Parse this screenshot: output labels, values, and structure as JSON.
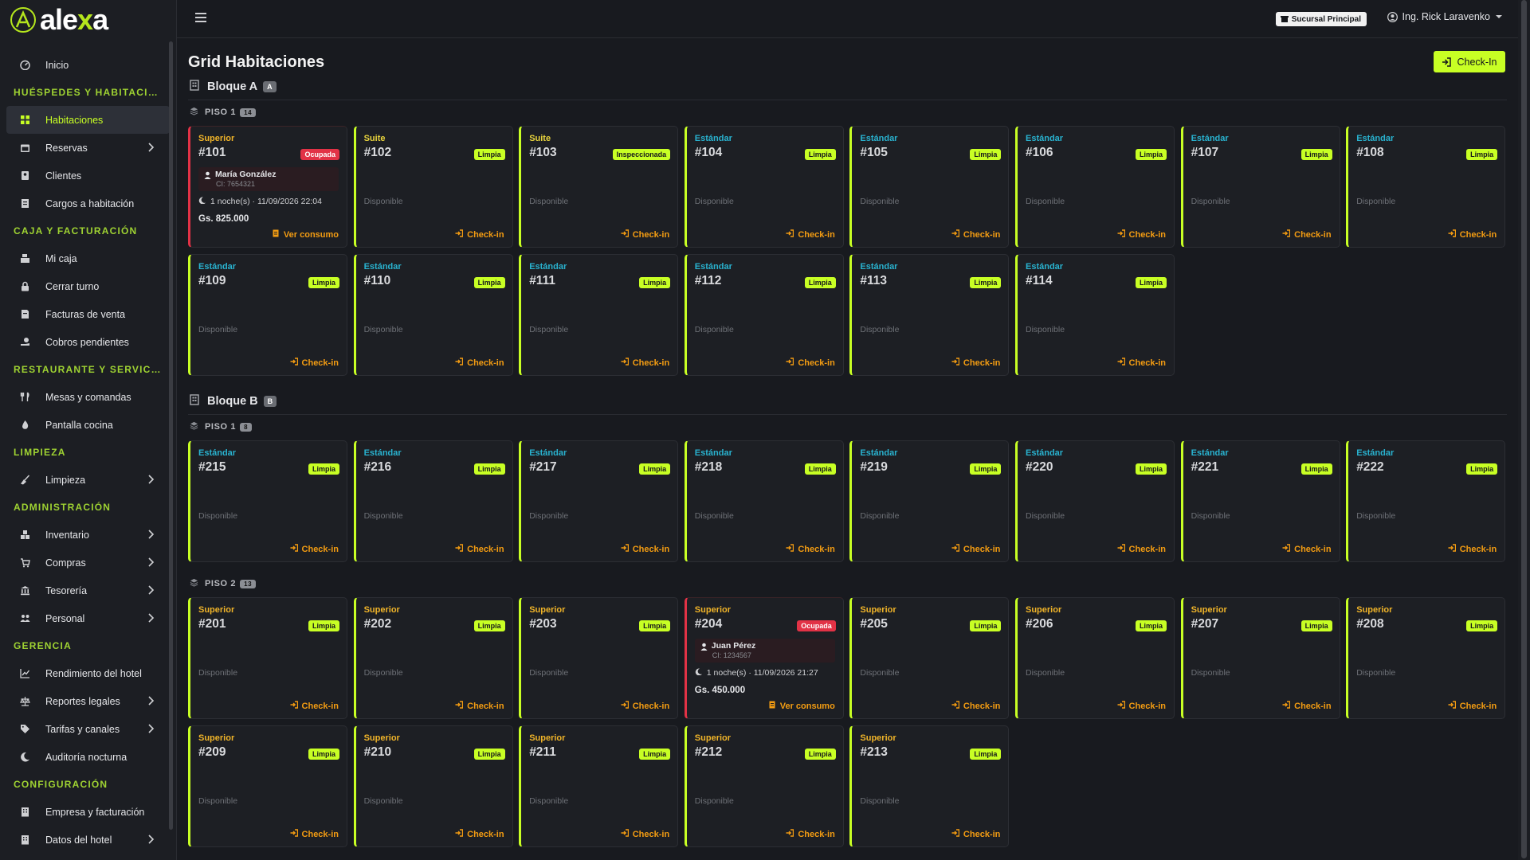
{
  "app": {
    "logo_text": "alexa"
  },
  "topbar": {
    "branch": "Sucursal Principal",
    "user": "Ing. Rick Laravenko"
  },
  "sidebar": [
    {
      "kind": "item",
      "label": "Inicio",
      "icon": "gauge-icon"
    },
    {
      "kind": "section",
      "label": "HUÉSPEDES Y HABITACIONES"
    },
    {
      "kind": "item",
      "label": "Habitaciones",
      "icon": "grid-icon",
      "active": true
    },
    {
      "kind": "item",
      "label": "Reservas",
      "icon": "calendar-icon",
      "chevron": true
    },
    {
      "kind": "item",
      "label": "Clientes",
      "icon": "contact-icon"
    },
    {
      "kind": "item",
      "label": "Cargos a habitación",
      "icon": "receipt-icon"
    },
    {
      "kind": "section",
      "label": "CAJA Y FACTURACIÓN"
    },
    {
      "kind": "item",
      "label": "Mi caja",
      "icon": "cash-register-icon"
    },
    {
      "kind": "item",
      "label": "Cerrar turno",
      "icon": "lock-icon"
    },
    {
      "kind": "item",
      "label": "Facturas de venta",
      "icon": "invoice-icon"
    },
    {
      "kind": "item",
      "label": "Cobros pendientes",
      "icon": "hand-coin-icon"
    },
    {
      "kind": "section",
      "label": "RESTAURANTE Y SERVICIOS"
    },
    {
      "kind": "item",
      "label": "Mesas y comandas",
      "icon": "utensils-icon"
    },
    {
      "kind": "item",
      "label": "Pantalla cocina",
      "icon": "fire-icon"
    },
    {
      "kind": "section",
      "label": "LIMPIEZA"
    },
    {
      "kind": "item",
      "label": "Limpieza",
      "icon": "broom-icon",
      "chevron": true
    },
    {
      "kind": "section",
      "label": "ADMINISTRACIÓN"
    },
    {
      "kind": "item",
      "label": "Inventario",
      "icon": "boxes-icon",
      "chevron": true
    },
    {
      "kind": "item",
      "label": "Compras",
      "icon": "cart-icon",
      "chevron": true
    },
    {
      "kind": "item",
      "label": "Tesorería",
      "icon": "bank-icon",
      "chevron": true
    },
    {
      "kind": "item",
      "label": "Personal",
      "icon": "users-icon",
      "chevron": true
    },
    {
      "kind": "section",
      "label": "GERENCIA"
    },
    {
      "kind": "item",
      "label": "Rendimiento del hotel",
      "icon": "chart-line-icon"
    },
    {
      "kind": "item",
      "label": "Reportes legales",
      "icon": "scale-icon",
      "chevron": true
    },
    {
      "kind": "item",
      "label": "Tarifas y canales",
      "icon": "tag-icon",
      "chevron": true
    },
    {
      "kind": "item",
      "label": "Auditoría nocturna",
      "icon": "moon-icon"
    },
    {
      "kind": "section",
      "label": "CONFIGURACIÓN"
    },
    {
      "kind": "item",
      "label": "Empresa y facturación",
      "icon": "building-icon"
    },
    {
      "kind": "item",
      "label": "Datos del hotel",
      "icon": "building-icon",
      "chevron": true
    }
  ],
  "main": {
    "title": "Grid Habitaciones",
    "checkin_button": "Check-In",
    "available_text": "Disponible",
    "card_checkin": "Check-in",
    "view_consumption": "Ver consumo"
  },
  "blocks": [
    {
      "name": "Bloque A",
      "badge": "A",
      "floors": [
        {
          "name": "PISO 1",
          "count": "14",
          "rooms": [
            {
              "number": "#101",
              "type": "Superior",
              "type_key": "superior",
              "status": "Ocupada",
              "occupied": true,
              "guest": "María González",
              "guest_id": "CI: 7654321",
              "stay": "1 noche(s) · 11/09/2026 22:04",
              "amount": "Gs. 825.000"
            },
            {
              "number": "#102",
              "type": "Suite",
              "type_key": "suite",
              "status": "Limpia"
            },
            {
              "number": "#103",
              "type": "Suite",
              "type_key": "suite",
              "status": "Inspeccionada"
            },
            {
              "number": "#104",
              "type": "Estándar",
              "type_key": "estandar",
              "status": "Limpia"
            },
            {
              "number": "#105",
              "type": "Estándar",
              "type_key": "estandar",
              "status": "Limpia"
            },
            {
              "number": "#106",
              "type": "Estándar",
              "type_key": "estandar",
              "status": "Limpia"
            },
            {
              "number": "#107",
              "type": "Estándar",
              "type_key": "estandar",
              "status": "Limpia"
            },
            {
              "number": "#108",
              "type": "Estándar",
              "type_key": "estandar",
              "status": "Limpia"
            },
            {
              "number": "#109",
              "type": "Estándar",
              "type_key": "estandar",
              "status": "Limpia"
            },
            {
              "number": "#110",
              "type": "Estándar",
              "type_key": "estandar",
              "status": "Limpia"
            },
            {
              "number": "#111",
              "type": "Estándar",
              "type_key": "estandar",
              "status": "Limpia"
            },
            {
              "number": "#112",
              "type": "Estándar",
              "type_key": "estandar",
              "status": "Limpia"
            },
            {
              "number": "#113",
              "type": "Estándar",
              "type_key": "estandar",
              "status": "Limpia"
            },
            {
              "number": "#114",
              "type": "Estándar",
              "type_key": "estandar",
              "status": "Limpia"
            }
          ]
        }
      ]
    },
    {
      "name": "Bloque B",
      "badge": "B",
      "floors": [
        {
          "name": "PISO 1",
          "count": "8",
          "rooms": [
            {
              "number": "#215",
              "type": "Estándar",
              "type_key": "estandar",
              "status": "Limpia"
            },
            {
              "number": "#216",
              "type": "Estándar",
              "type_key": "estandar",
              "status": "Limpia"
            },
            {
              "number": "#217",
              "type": "Estándar",
              "type_key": "estandar",
              "status": "Limpia"
            },
            {
              "number": "#218",
              "type": "Estándar",
              "type_key": "estandar",
              "status": "Limpia"
            },
            {
              "number": "#219",
              "type": "Estándar",
              "type_key": "estandar",
              "status": "Limpia"
            },
            {
              "number": "#220",
              "type": "Estándar",
              "type_key": "estandar",
              "status": "Limpia"
            },
            {
              "number": "#221",
              "type": "Estándar",
              "type_key": "estandar",
              "status": "Limpia"
            },
            {
              "number": "#222",
              "type": "Estándar",
              "type_key": "estandar",
              "status": "Limpia"
            }
          ]
        },
        {
          "name": "PISO 2",
          "count": "13",
          "rooms": [
            {
              "number": "#201",
              "type": "Superior",
              "type_key": "superior",
              "status": "Limpia"
            },
            {
              "number": "#202",
              "type": "Superior",
              "type_key": "superior",
              "status": "Limpia"
            },
            {
              "number": "#203",
              "type": "Superior",
              "type_key": "superior",
              "status": "Limpia"
            },
            {
              "number": "#204",
              "type": "Superior",
              "type_key": "superior",
              "status": "Ocupada",
              "occupied": true,
              "guest": "Juan Pérez",
              "guest_id": "CI: 1234567",
              "stay": "1 noche(s) · 11/09/2026 21:27",
              "amount": "Gs. 450.000"
            },
            {
              "number": "#205",
              "type": "Superior",
              "type_key": "superior",
              "status": "Limpia"
            },
            {
              "number": "#206",
              "type": "Superior",
              "type_key": "superior",
              "status": "Limpia"
            },
            {
              "number": "#207",
              "type": "Superior",
              "type_key": "superior",
              "status": "Limpia"
            },
            {
              "number": "#208",
              "type": "Superior",
              "type_key": "superior",
              "status": "Limpia"
            },
            {
              "number": "#209",
              "type": "Superior",
              "type_key": "superior",
              "status": "Limpia"
            },
            {
              "number": "#210",
              "type": "Superior",
              "type_key": "superior",
              "status": "Limpia"
            },
            {
              "number": "#211",
              "type": "Superior",
              "type_key": "superior",
              "status": "Limpia"
            },
            {
              "number": "#212",
              "type": "Superior",
              "type_key": "superior",
              "status": "Limpia"
            },
            {
              "number": "#213",
              "type": "Superior",
              "type_key": "superior",
              "status": "Limpia"
            }
          ]
        }
      ]
    }
  ],
  "colors": {
    "accent": "#c8ff24",
    "occupied": "#e23246",
    "checkin": "#f39c12",
    "superior": "#f0b429",
    "suite": "#e9d43d",
    "estandar": "#29b2cf"
  }
}
